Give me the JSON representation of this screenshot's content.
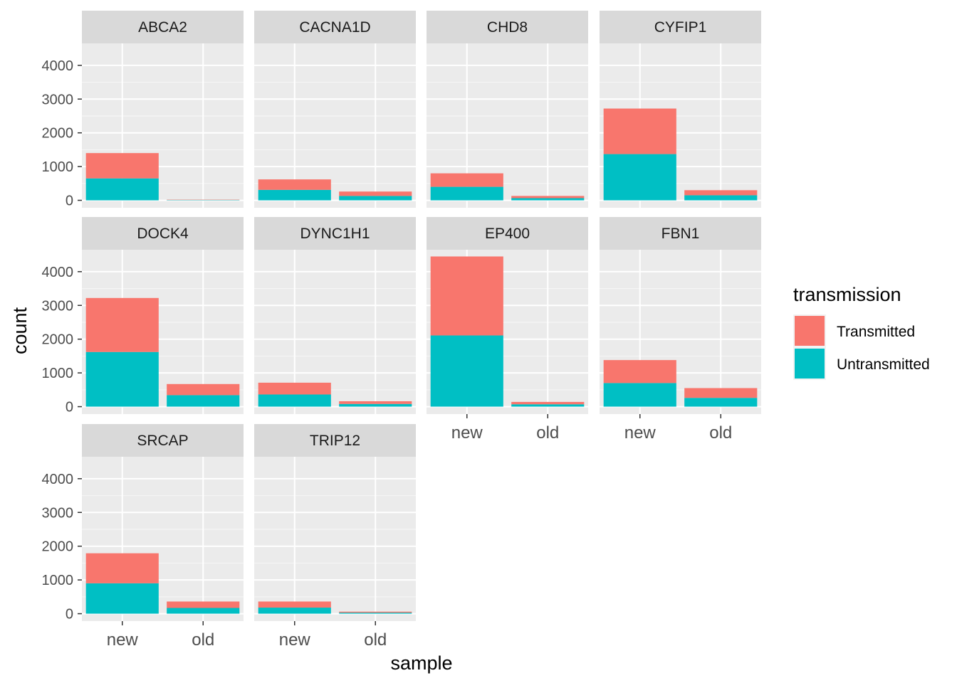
{
  "chart_data": {
    "type": "bar",
    "stacked": true,
    "faceted": true,
    "xlabel": "sample",
    "ylabel": "count",
    "categories": [
      "new",
      "old"
    ],
    "y_ticks": [
      0,
      1000,
      2000,
      3000,
      4000
    ],
    "ylim": [
      -220,
      4650
    ],
    "legend": {
      "title": "transmission",
      "position": "right",
      "entries": [
        {
          "label": "Transmitted",
          "color": "#F8766D"
        },
        {
          "label": "Untransmitted",
          "color": "#00BFC4"
        }
      ]
    },
    "series_colors": {
      "Transmitted": "#F8766D",
      "Untransmitted": "#00BFC4"
    },
    "panel_background": "#EBEBEB",
    "strip_background": "#D9D9D9",
    "grid": true,
    "facets": [
      {
        "gene": "ABCA2",
        "bars": [
          {
            "sample": "new",
            "Untransmitted": 650,
            "Transmitted": 750
          },
          {
            "sample": "old",
            "Untransmitted": 10,
            "Transmitted": 10
          }
        ]
      },
      {
        "gene": "CACNA1D",
        "bars": [
          {
            "sample": "new",
            "Untransmitted": 310,
            "Transmitted": 310
          },
          {
            "sample": "old",
            "Untransmitted": 130,
            "Transmitted": 130
          }
        ]
      },
      {
        "gene": "CHD8",
        "bars": [
          {
            "sample": "new",
            "Untransmitted": 400,
            "Transmitted": 400
          },
          {
            "sample": "old",
            "Untransmitted": 65,
            "Transmitted": 65
          }
        ]
      },
      {
        "gene": "CYFIP1",
        "bars": [
          {
            "sample": "new",
            "Untransmitted": 1370,
            "Transmitted": 1350
          },
          {
            "sample": "old",
            "Untransmitted": 150,
            "Transmitted": 150
          }
        ]
      },
      {
        "gene": "DOCK4",
        "bars": [
          {
            "sample": "new",
            "Untransmitted": 1620,
            "Transmitted": 1600
          },
          {
            "sample": "old",
            "Untransmitted": 340,
            "Transmitted": 330
          }
        ]
      },
      {
        "gene": "DYNC1H1",
        "bars": [
          {
            "sample": "new",
            "Untransmitted": 360,
            "Transmitted": 350
          },
          {
            "sample": "old",
            "Untransmitted": 80,
            "Transmitted": 80
          }
        ]
      },
      {
        "gene": "EP400",
        "bars": [
          {
            "sample": "new",
            "Untransmitted": 2110,
            "Transmitted": 2340
          },
          {
            "sample": "old",
            "Untransmitted": 70,
            "Transmitted": 70
          }
        ]
      },
      {
        "gene": "FBN1",
        "bars": [
          {
            "sample": "new",
            "Untransmitted": 700,
            "Transmitted": 680
          },
          {
            "sample": "old",
            "Untransmitted": 260,
            "Transmitted": 290
          }
        ]
      },
      {
        "gene": "SRCAP",
        "bars": [
          {
            "sample": "new",
            "Untransmitted": 900,
            "Transmitted": 890
          },
          {
            "sample": "old",
            "Untransmitted": 170,
            "Transmitted": 190
          }
        ]
      },
      {
        "gene": "TRIP12",
        "bars": [
          {
            "sample": "new",
            "Untransmitted": 180,
            "Transmitted": 180
          },
          {
            "sample": "old",
            "Untransmitted": 30,
            "Transmitted": 30
          }
        ]
      }
    ]
  }
}
